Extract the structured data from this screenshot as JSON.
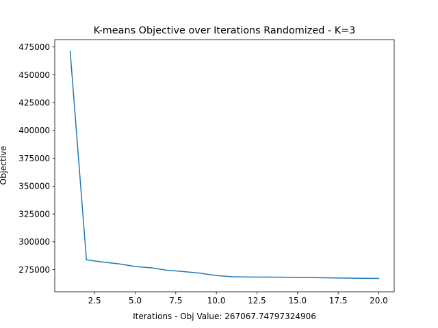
{
  "chart_data": {
    "type": "line",
    "title": "K-means Objective over Iterations Randomized - K=3",
    "xlabel": "Iterations - Obj Value: 267067.74797324906",
    "ylabel": "Objective",
    "xlim": [
      0.05,
      20.95
    ],
    "ylim": [
      255100,
      481600
    ],
    "x_ticks": [
      2.5,
      5.0,
      7.5,
      10.0,
      12.5,
      15.0,
      17.5,
      20.0
    ],
    "x_tick_labels": [
      "2.5",
      "5.0",
      "7.5",
      "10.0",
      "12.5",
      "15.0",
      "17.5",
      "20.0"
    ],
    "y_ticks": [
      275000,
      300000,
      325000,
      350000,
      375000,
      400000,
      425000,
      450000,
      475000
    ],
    "y_tick_labels": [
      "275000",
      "300000",
      "325000",
      "350000",
      "375000",
      "400000",
      "425000",
      "450000",
      "475000"
    ],
    "grid": false,
    "series": [
      {
        "color": "#1f77b4",
        "x": [
          1,
          2,
          3,
          4,
          5,
          6,
          7,
          8,
          9,
          10,
          11,
          12,
          13,
          14,
          15,
          16,
          17,
          18,
          19,
          20
        ],
        "values": [
          471000,
          283800,
          281800,
          280200,
          277800,
          276600,
          274400,
          273200,
          271800,
          269700,
          268600,
          268400,
          268300,
          268200,
          268000,
          267800,
          267600,
          267400,
          267200,
          267068
        ]
      }
    ]
  }
}
